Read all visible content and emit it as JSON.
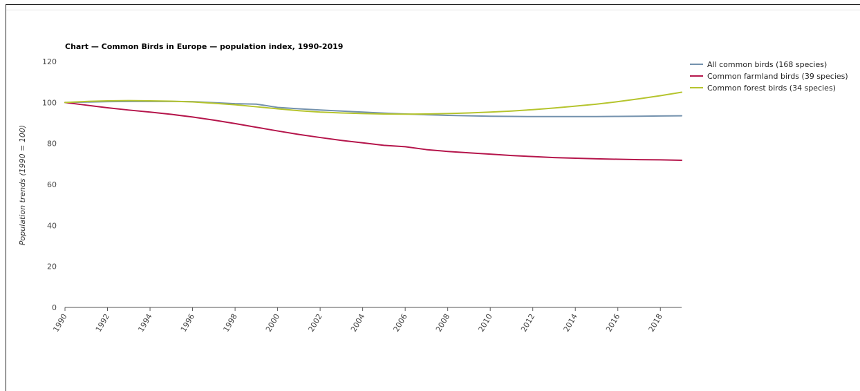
{
  "chart_data": {
    "type": "line",
    "title": "Chart — Common Birds in Europe — population index, 1990-2019",
    "xlabel": "",
    "ylabel": "Population trends (1990 = 100)",
    "ylim": [
      0,
      120
    ],
    "xlim": [
      1990,
      2019
    ],
    "yticks": [
      0,
      20,
      40,
      60,
      80,
      100,
      120
    ],
    "xticks": [
      "1990",
      "1992",
      "1994",
      "1996",
      "1998",
      "2000",
      "2002",
      "2004",
      "2006",
      "2008",
      "2010",
      "2012",
      "2014",
      "2016",
      "2018"
    ],
    "grid": false,
    "legend_position": "top-right",
    "x": [
      1990,
      1991,
      1992,
      1993,
      1994,
      1995,
      1996,
      1997,
      1998,
      1999,
      2000,
      2001,
      2002,
      2003,
      2004,
      2005,
      2006,
      2007,
      2008,
      2009,
      2010,
      2011,
      2012,
      2013,
      2014,
      2015,
      2016,
      2017,
      2018,
      2019
    ],
    "series": [
      {
        "name": "All common birds (168 species)",
        "color": "#7391ad",
        "values": [
          100,
          100.2,
          100.4,
          100.5,
          100.5,
          100.5,
          100.4,
          99.9,
          99.4,
          99.2,
          97.6,
          96.9,
          96.3,
          95.8,
          95.3,
          94.8,
          94.4,
          94.0,
          93.7,
          93.5,
          93.3,
          93.2,
          93.1,
          93.1,
          93.1,
          93.1,
          93.2,
          93.3,
          93.4,
          93.5
        ]
      },
      {
        "name": "Common farmland birds (39 species)",
        "color": "#b5154b",
        "values": [
          100,
          98.7,
          97.4,
          96.3,
          95.3,
          94.2,
          92.9,
          91.4,
          89.7,
          87.9,
          86.1,
          84.4,
          82.9,
          81.5,
          80.3,
          79.1,
          78.4,
          77.0,
          76.1,
          75.4,
          74.8,
          74.1,
          73.6,
          73.1,
          72.8,
          72.5,
          72.3,
          72.1,
          72.0,
          71.8
        ]
      },
      {
        "name": "Common forest birds (34 species)",
        "color": "#b5c42d",
        "values": [
          100,
          100.5,
          100.8,
          100.9,
          100.8,
          100.6,
          100.3,
          99.6,
          98.9,
          97.9,
          96.9,
          96.0,
          95.3,
          94.9,
          94.6,
          94.4,
          94.3,
          94.4,
          94.6,
          94.9,
          95.3,
          95.8,
          96.5,
          97.3,
          98.2,
          99.2,
          100.4,
          101.8,
          103.3,
          105.0
        ]
      }
    ]
  }
}
